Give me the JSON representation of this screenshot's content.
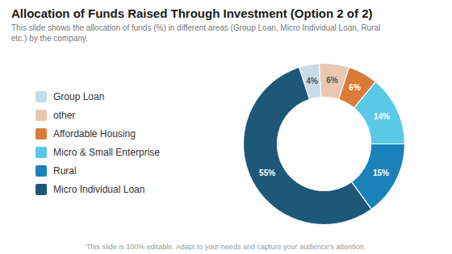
{
  "chart_data": {
    "type": "pie",
    "title": "Allocation of Funds Raised Through Investment (Option 2 of 2)",
    "subtitle": "This slide shows the allocation of funds (%) in different areas (Group Loan, Micro Individual Loan, Rural\netc.) by the company.",
    "caption": "This slide is 100% editable. Adapt to your needs and capture your audience's attention.",
    "categories": [
      "Micro Individual Loan",
      "Rural",
      "Micro & Small Enterprise",
      "Affordable Housing",
      "other",
      "Group Loan"
    ],
    "values": [
      55,
      15,
      14,
      6,
      6,
      4
    ],
    "value_labels": [
      "55%",
      "15%",
      "14%",
      "6%",
      "6%",
      "4%"
    ],
    "colors": [
      "#1e5878",
      "#1a82b8",
      "#5bc8e8",
      "#d97c3a",
      "#e8c8b0",
      "#c8dce8"
    ],
    "data_labels": true,
    "legend": "left"
  }
}
